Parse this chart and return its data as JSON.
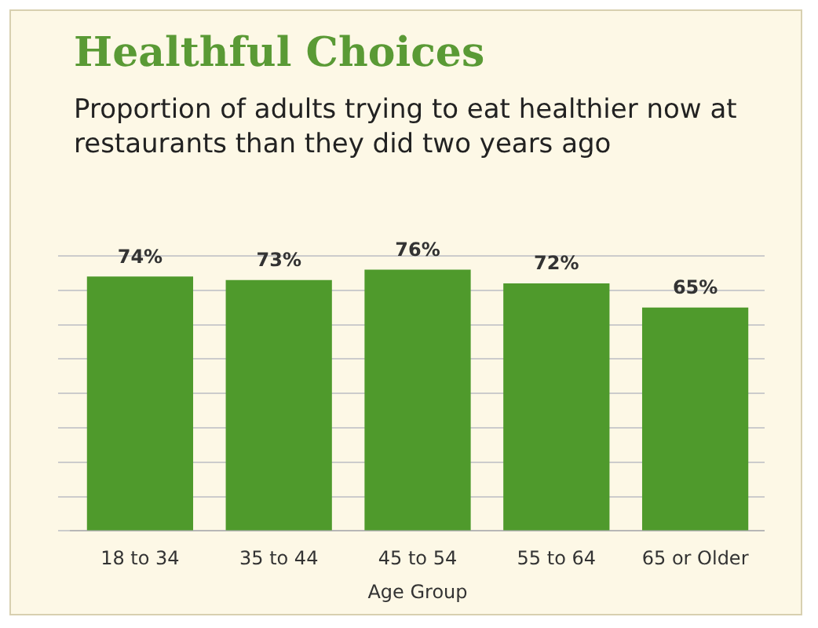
{
  "chart_data": {
    "type": "bar",
    "title": "Healthful Choices",
    "subtitle": "Proportion of adults trying to eat healthier now at restaurants than they did two years ago",
    "xlabel": "Age Group",
    "categories": [
      "18 to 34",
      "35 to 44",
      "45 to 54",
      "55 to 64",
      "65 or Older"
    ],
    "values": [
      74,
      73,
      76,
      72,
      65
    ],
    "value_labels": [
      "74%",
      "73%",
      "76%",
      "72%",
      "65%"
    ],
    "color": "#4f9a2c",
    "grid": "y",
    "legend": false
  }
}
